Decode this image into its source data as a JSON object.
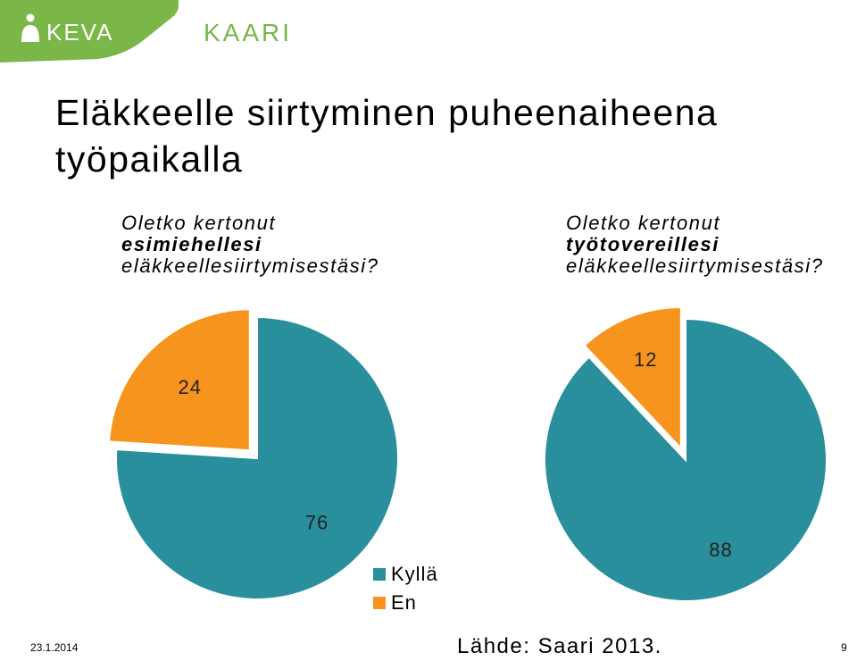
{
  "header": {
    "logo_keva": "KEVA",
    "logo_kaari": "KAARI"
  },
  "title": {
    "line1": "Eläkkeelle siirtyminen puheenaiheena",
    "line2": "työpaikalla"
  },
  "colors": {
    "teal": "#2a8f9c",
    "orange": "#f7941d",
    "green": "#7ab648"
  },
  "chart_data": [
    {
      "type": "pie",
      "title": "Oletko kertonut esimiehellesi eläkkeellesiirtymisestäsi?",
      "title_lines": [
        "Oletko kertonut",
        "esimiehellesi",
        "eläkkeellesiirtymisestäsi?"
      ],
      "categories": [
        "Kyllä",
        "En"
      ],
      "values": [
        76,
        24
      ],
      "labels": [
        "76",
        "24"
      ],
      "colors": [
        "#2a8f9c",
        "#f7941d"
      ],
      "exploded": [
        "En"
      ]
    },
    {
      "type": "pie",
      "title": "Oletko kertonut työtovereillesi eläkkeellesiirtymisestäsi?",
      "title_lines": [
        "Oletko kertonut",
        "työtovereillesi",
        "eläkkeellesiirtymisestäsi?"
      ],
      "categories": [
        "Kyllä",
        "En"
      ],
      "values": [
        88,
        12
      ],
      "labels": [
        "88",
        "12"
      ],
      "colors": [
        "#2a8f9c",
        "#f7941d"
      ],
      "exploded": [
        "En"
      ]
    }
  ],
  "legend": {
    "items": [
      {
        "label": "Kyllä",
        "color": "#2a8f9c"
      },
      {
        "label": "En",
        "color": "#f7941d"
      }
    ],
    "placement": "bottom-center"
  },
  "footer": {
    "date": "23.1.2014",
    "source": "Lähde: Saari 2013.",
    "page": "9"
  }
}
